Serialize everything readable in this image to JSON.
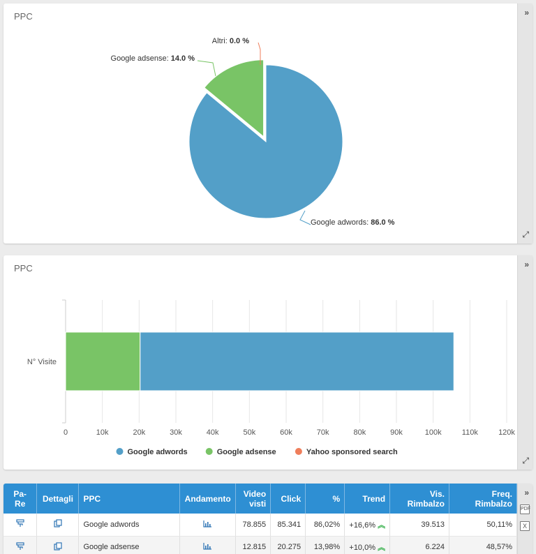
{
  "panel1": {
    "title": "PPC",
    "collapse_glyph": "»",
    "expand_glyph": "⤢"
  },
  "pie_chart_data": {
    "type": "pie",
    "slices": [
      {
        "label": "Google adwords",
        "value": 86.0,
        "display": "86.0 %",
        "color": "#539fc8"
      },
      {
        "label": "Google adsense",
        "value": 14.0,
        "display": "14.0 %",
        "color": "#79c466"
      },
      {
        "label": "Altri",
        "value": 0.0,
        "display": "0.0 %",
        "color": "#ef7e5b"
      }
    ]
  },
  "panel2": {
    "title": "PPC",
    "collapse_glyph": "»",
    "expand_glyph": "⤢"
  },
  "chart_data": {
    "type": "bar",
    "orientation": "horizontal",
    "stacked": true,
    "categories": [
      "N° Visite"
    ],
    "series": [
      {
        "name": "Google adsense",
        "values": [
          20275
        ],
        "color": "#79c466"
      },
      {
        "name": "Google adwords",
        "values": [
          85341
        ],
        "color": "#539fc8"
      },
      {
        "name": "Yahoo sponsored search",
        "values": [
          0
        ],
        "color": "#ef7e5b"
      }
    ],
    "xlim": [
      0,
      120000
    ],
    "x_ticks": [
      "0",
      "10k",
      "20k",
      "30k",
      "40k",
      "50k",
      "60k",
      "70k",
      "80k",
      "90k",
      "100k",
      "110k",
      "120k"
    ],
    "legend": [
      "Google adwords",
      "Google adsense",
      "Yahoo sponsored search"
    ],
    "legend_colors": [
      "#539fc8",
      "#79c466",
      "#ef7e5b"
    ],
    "legend_position": "bottom",
    "grid": true
  },
  "table": {
    "headers": {
      "pare_line1": "Pa-",
      "pare_line2": "Re",
      "dettagli": "Dettagli",
      "ppc": "PPC",
      "andamento": "Andamento",
      "video_line1": "Video",
      "video_line2": "visti",
      "click": "Click",
      "percent": "%",
      "trend": "Trend",
      "vis_line1": "Vis.",
      "vis_line2": "Rimbalzo",
      "freq_line1": "Freq.",
      "freq_line2": "Rimbalzo"
    },
    "rows": [
      {
        "ppc": "Google adwords",
        "video_visti": "78.855",
        "click": "85.341",
        "percent": "86,02%",
        "trend": "+16,6%",
        "vis_rimbalzo": "39.513",
        "freq_rimbalzo": "50,11%"
      },
      {
        "ppc": "Google adsense",
        "video_visti": "12.815",
        "click": "20.275",
        "percent": "13,98%",
        "trend": "+10,0%",
        "vis_rimbalzo": "6.224",
        "freq_rimbalzo": "48,57%"
      }
    ],
    "side_collapse_glyph": "»",
    "pdf_label": "PDF",
    "xls_label": "X"
  }
}
